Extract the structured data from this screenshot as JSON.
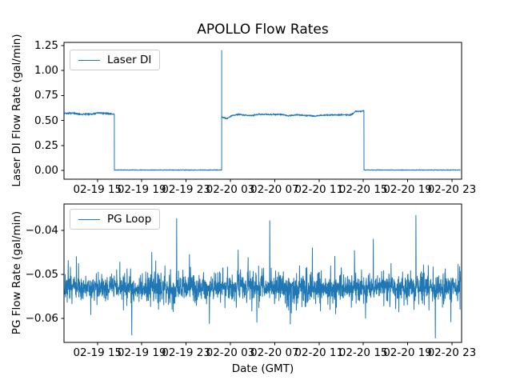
{
  "figure": {
    "title": "APOLLO Flow Rates",
    "background": "#ffffff",
    "line_color": "#1f77b4"
  },
  "chart_data": [
    {
      "type": "line",
      "title": "APOLLO Flow Rates",
      "xlabel": "",
      "ylabel": "Laser DI Flow Rate (gal/min)",
      "legend": {
        "entries": [
          "Laser DI"
        ],
        "position": "upper left"
      },
      "line_color": "#1f77b4",
      "x_unit": "hours since 02-19 12:00 GMT",
      "xlim": [
        -0.02,
        35.87
      ],
      "ylim": [
        -0.088,
        1.282
      ],
      "grid": false,
      "xticks": {
        "hours": [
          3,
          7,
          11,
          15,
          19,
          23,
          27,
          31,
          35
        ],
        "labels": [
          "02-19 15",
          "02-19 19",
          "02-19 23",
          "02-20 03",
          "02-20 07",
          "02-20 11",
          "02-20 15",
          "02-20 19",
          "02-20 23"
        ]
      },
      "yticks": {
        "values": [
          0,
          0.25,
          0.5,
          0.75,
          1.0,
          1.25
        ],
        "labels": [
          "0.00",
          "0.25",
          "0.50",
          "0.75",
          "1.00",
          "1.25"
        ]
      },
      "series_gen": {
        "dt": 0.02,
        "seed": 42,
        "segments": [
          {
            "t0": 0.0,
            "t1": 4.53,
            "level": 0.568,
            "noise": 0.013,
            "wander": 0.006
          },
          {
            "t0": 4.53,
            "t1": 14.21,
            "level": 0.004,
            "noise": 0.004,
            "wander": 0
          },
          {
            "t0": 14.21,
            "t1": 27.06,
            "noise": 0.01,
            "wander": 0.004,
            "profile": [
              [
                14.21,
                0.537
              ],
              [
                14.4,
                0.53
              ],
              [
                14.7,
                0.524
              ],
              [
                14.95,
                0.54
              ],
              [
                15.3,
                0.553
              ],
              [
                16.0,
                0.557
              ],
              [
                17.0,
                0.552
              ],
              [
                17.8,
                0.56
              ],
              [
                18.6,
                0.565
              ],
              [
                19.3,
                0.558
              ],
              [
                20.0,
                0.552
              ],
              [
                20.8,
                0.556
              ],
              [
                21.5,
                0.548
              ],
              [
                22.2,
                0.552
              ],
              [
                23.0,
                0.546
              ],
              [
                23.6,
                0.552
              ],
              [
                24.2,
                0.56
              ],
              [
                24.8,
                0.556
              ],
              [
                25.4,
                0.552
              ],
              [
                25.9,
                0.56
              ],
              [
                26.3,
                0.594
              ],
              [
                26.7,
                0.59
              ],
              [
                27.06,
                0.596
              ]
            ]
          },
          {
            "t0": 27.06,
            "t1": 35.78,
            "level": 0.004,
            "noise": 0.004,
            "wander": 0
          }
        ],
        "spikes": [
          {
            "t": 14.21,
            "v": 1.2
          }
        ]
      }
    },
    {
      "type": "line",
      "title": "",
      "xlabel": "Date (GMT)",
      "ylabel": "PG Flow Rate (gal/min)",
      "legend": {
        "entries": [
          "PG Loop"
        ],
        "position": "upper left"
      },
      "line_color": "#1f77b4",
      "x_unit": "hours since 02-19 12:00 GMT",
      "xlim": [
        -0.02,
        35.87
      ],
      "ylim": [
        -0.0655,
        -0.034
      ],
      "grid": false,
      "xticks": {
        "hours": [
          3,
          7,
          11,
          15,
          19,
          23,
          27,
          31,
          35
        ],
        "labels": [
          "02-19 15",
          "02-19 19",
          "02-19 23",
          "02-20 03",
          "02-20 07",
          "02-20 11",
          "02-20 15",
          "02-20 19",
          "02-20 23"
        ]
      },
      "yticks": {
        "values": [
          -0.04,
          -0.05,
          -0.06
        ],
        "labels": [
          "−0.04",
          "−0.05",
          "−0.06"
        ]
      },
      "series_gen": {
        "dt": 0.018,
        "t0": 0.0,
        "t1": 35.78,
        "seed": 7,
        "baseline": -0.053,
        "core_noise": 0.0026,
        "mid_prob": 0.35,
        "mid_amp": 0.0035,
        "big_prob": 0.04,
        "big_amp": 0.007,
        "spikes": [
          {
            "t": 1.1,
            "v": -0.046
          },
          {
            "t": 2.4,
            "v": -0.0592
          },
          {
            "t": 6.1,
            "v": -0.0638
          },
          {
            "t": 7.9,
            "v": -0.045
          },
          {
            "t": 10.15,
            "v": -0.0373
          },
          {
            "t": 11.3,
            "v": -0.0455
          },
          {
            "t": 13.1,
            "v": -0.0612
          },
          {
            "t": 15.7,
            "v": -0.0445
          },
          {
            "t": 16.6,
            "v": -0.0462
          },
          {
            "t": 18.55,
            "v": -0.0378
          },
          {
            "t": 20.5,
            "v": -0.0588
          },
          {
            "t": 22.4,
            "v": -0.044
          },
          {
            "t": 24.5,
            "v": -0.059
          },
          {
            "t": 26.2,
            "v": -0.0446
          },
          {
            "t": 27.9,
            "v": -0.042
          },
          {
            "t": 30.2,
            "v": -0.0585
          },
          {
            "t": 31.75,
            "v": -0.0366
          },
          {
            "t": 33.5,
            "v": -0.0645
          },
          {
            "t": 34.9,
            "v": -0.0608
          }
        ]
      }
    }
  ]
}
